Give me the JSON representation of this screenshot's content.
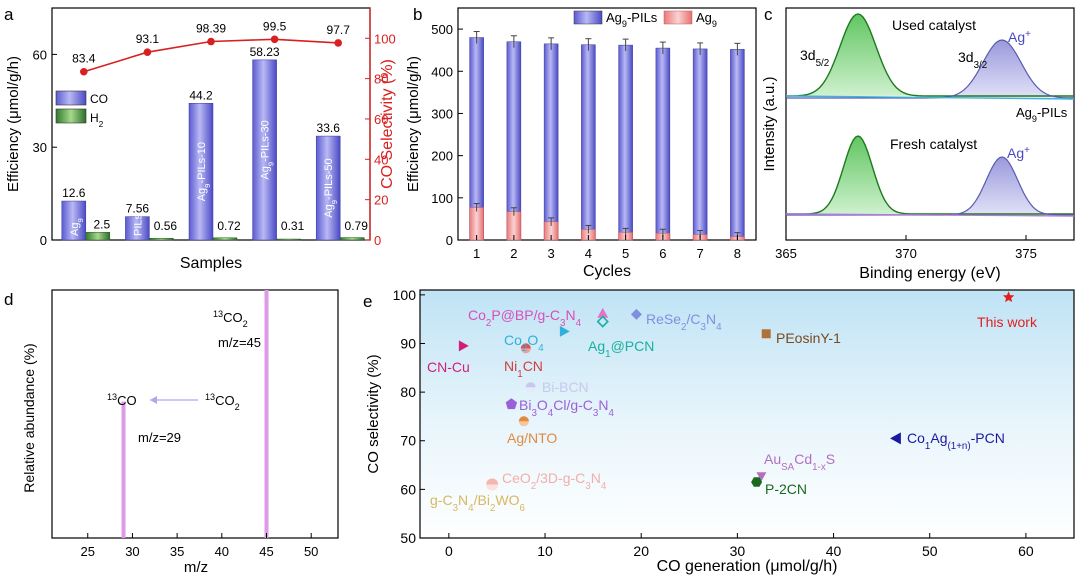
{
  "chart_data": [
    {
      "panel": "a",
      "type": "bar",
      "xlabel": "Samples",
      "ylabel": "Efficiency (μmol/g/h)",
      "ylabel_right": "CO Selectivity (%)",
      "ylim": [
        0,
        75
      ],
      "ylim_right": [
        0,
        115
      ],
      "yticks": [
        0,
        30,
        60
      ],
      "yticks_right": [
        0,
        20,
        40,
        60,
        80,
        100
      ],
      "categories": [
        "Ag9",
        "PILs",
        "Ag9-PILs-10",
        "Ag9-PILs-30",
        "Ag9-PILs-50"
      ],
      "series": [
        {
          "name": "CO",
          "values": [
            12.6,
            7.56,
            44.2,
            58.23,
            33.6
          ],
          "labels": [
            "12.6",
            "7.56",
            "44.2",
            "58.23",
            "33.6"
          ]
        },
        {
          "name": "H2",
          "values": [
            2.5,
            0.56,
            0.72,
            0.31,
            0.79
          ],
          "labels": [
            "2.5",
            "0.56",
            "0.72",
            "0.31",
            "0.79"
          ]
        },
        {
          "name": "CO Selectivity",
          "values": [
            83.4,
            93.1,
            98.39,
            99.5,
            97.7
          ],
          "labels": [
            "83.4",
            "93.1",
            "98.39",
            "99.5",
            "97.7"
          ]
        }
      ]
    },
    {
      "panel": "b",
      "type": "bar",
      "xlabel": "Cycles",
      "ylabel": "Efficiency (μmol/g/h)",
      "ylim": [
        0,
        550
      ],
      "yticks": [
        0,
        100,
        200,
        300,
        400,
        500
      ],
      "categories": [
        "1",
        "2",
        "3",
        "4",
        "5",
        "6",
        "7",
        "8"
      ],
      "series": [
        {
          "name": "Ag9-PILs",
          "values": [
            480,
            470,
            465,
            463,
            462,
            455,
            453,
            452
          ]
        },
        {
          "name": "Ag9",
          "values": [
            77,
            67,
            43,
            25,
            18,
            16,
            13,
            8
          ]
        }
      ]
    },
    {
      "panel": "c",
      "type": "line",
      "xlabel": "Binding energy (eV)",
      "ylabel": "Intensity (a.u.)",
      "xlim": [
        365,
        377
      ],
      "xticks": [
        365,
        370,
        375
      ],
      "peaks": [
        368.0,
        374.0
      ],
      "annotations": [
        "Used catalyst",
        "Fresh catalyst",
        "Ag9-PILs",
        "3d5/2",
        "3d3/2",
        "Ag+",
        "Ag+"
      ]
    },
    {
      "panel": "d",
      "type": "bar",
      "xlabel": "m/z",
      "ylabel": "Relative abundance (%)",
      "xlim": [
        21,
        53
      ],
      "xticks": [
        25,
        30,
        35,
        40,
        45,
        50
      ],
      "x": [
        29,
        45
      ],
      "values": [
        0.55,
        1.0
      ],
      "annotations": [
        "13CO2",
        "m/z=45",
        "13CO",
        "13CO2",
        "m/z=29"
      ]
    },
    {
      "panel": "e",
      "type": "scatter",
      "xlabel": "CO generation (μmol/g/h)",
      "ylabel": "CO selectivity (%)",
      "xlim": [
        -3,
        65
      ],
      "ylim": [
        50,
        101
      ],
      "xticks": [
        0,
        10,
        20,
        30,
        40,
        50,
        60
      ],
      "yticks": [
        50,
        60,
        70,
        80,
        90,
        100
      ],
      "points": [
        {
          "name": "This work",
          "x": 58.2,
          "y": 99.5
        },
        {
          "name": "Co2P@BP/g-C3N4",
          "x": 16,
          "y": 96
        },
        {
          "name": "ReSe2/C3N4",
          "x": 19.5,
          "y": 96
        },
        {
          "name": "Co2O4",
          "x": 12,
          "y": 92.5
        },
        {
          "name": "Ag1@PCN",
          "x": 16,
          "y": 94.5
        },
        {
          "name": "PEosinY-1",
          "x": 33,
          "y": 92
        },
        {
          "name": "CN-Cu",
          "x": 1.5,
          "y": 89.5
        },
        {
          "name": "Ni1CN",
          "x": 8,
          "y": 89
        },
        {
          "name": "Bi-BCN",
          "x": 8.5,
          "y": 81
        },
        {
          "name": "Bi3O4Cl/g-C3N4",
          "x": 6.5,
          "y": 77.5
        },
        {
          "name": "Ag/NTO",
          "x": 7.8,
          "y": 74
        },
        {
          "name": "Co1Ag(1+n)-PCN",
          "x": 46.5,
          "y": 70.5
        },
        {
          "name": "AuSACd1-xS",
          "x": 32.5,
          "y": 62.5
        },
        {
          "name": "P-2CN",
          "x": 32,
          "y": 61.5
        },
        {
          "name": "CeO2/3D-g-C3N4",
          "x": 4.5,
          "y": 61
        },
        {
          "name": "g-C3N4/Bi2WO6",
          "x": 4.5,
          "y": 61
        }
      ]
    }
  ]
}
